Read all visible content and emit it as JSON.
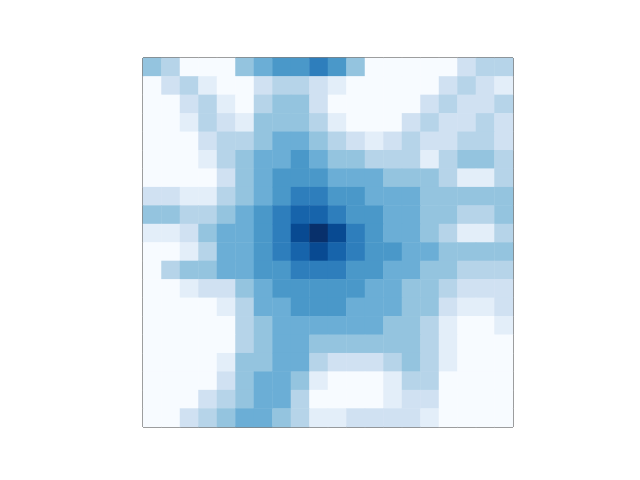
{
  "chart_data": {
    "type": "heatmap",
    "color": "Blues",
    "tick_labels": false,
    "zlim": [
      0,
      10
    ],
    "cells": [
      [
        4,
        3,
        0,
        0,
        0,
        4,
        5,
        6,
        6,
        7,
        6,
        4,
        0,
        0,
        0,
        0,
        0,
        2,
        3,
        3
      ],
      [
        0,
        2,
        3,
        1,
        0,
        0,
        2,
        3,
        3,
        2,
        1,
        0,
        0,
        0,
        0,
        0,
        2,
        3,
        2,
        1
      ],
      [
        0,
        0,
        2,
        3,
        1,
        0,
        3,
        4,
        4,
        2,
        0,
        0,
        0,
        0,
        0,
        2,
        3,
        2,
        2,
        3
      ],
      [
        0,
        0,
        1,
        3,
        2,
        1,
        4,
        4,
        4,
        3,
        1,
        0,
        0,
        0,
        2,
        3,
        2,
        2,
        3,
        2
      ],
      [
        0,
        0,
        0,
        2,
        3,
        3,
        4,
        5,
        5,
        4,
        3,
        2,
        1,
        2,
        3,
        2,
        2,
        3,
        3,
        2
      ],
      [
        0,
        0,
        0,
        1,
        3,
        4,
        5,
        5,
        6,
        5,
        4,
        4,
        3,
        3,
        3,
        1,
        3,
        4,
        4,
        3
      ],
      [
        0,
        0,
        0,
        0,
        2,
        4,
        5,
        6,
        6,
        6,
        5,
        5,
        5,
        4,
        4,
        4,
        3,
        1,
        1,
        3
      ],
      [
        2,
        2,
        1,
        1,
        3,
        4,
        5,
        6,
        7,
        7,
        6,
        6,
        5,
        5,
        5,
        4,
        4,
        4,
        4,
        4
      ],
      [
        4,
        4,
        3,
        3,
        4,
        5,
        6,
        7,
        8,
        8,
        7,
        6,
        6,
        5,
        5,
        4,
        4,
        3,
        3,
        4
      ],
      [
        1,
        1,
        2,
        4,
        5,
        5,
        6,
        7,
        9,
        10,
        9,
        7,
        6,
        5,
        5,
        4,
        3,
        1,
        1,
        3
      ],
      [
        0,
        0,
        1,
        3,
        5,
        5,
        6,
        7,
        8,
        9,
        8,
        7,
        6,
        6,
        5,
        5,
        4,
        4,
        4,
        4
      ],
      [
        0,
        3,
        4,
        4,
        5,
        5,
        6,
        6,
        7,
        7,
        7,
        6,
        6,
        5,
        5,
        4,
        4,
        3,
        3,
        3
      ],
      [
        0,
        0,
        1,
        2,
        2,
        4,
        5,
        6,
        6,
        6,
        6,
        6,
        5,
        5,
        4,
        4,
        3,
        2,
        2,
        2
      ],
      [
        0,
        0,
        0,
        0,
        1,
        3,
        5,
        5,
        6,
        6,
        6,
        5,
        5,
        5,
        4,
        4,
        2,
        1,
        1,
        2
      ],
      [
        0,
        0,
        0,
        0,
        0,
        3,
        4,
        5,
        5,
        5,
        5,
        5,
        5,
        4,
        4,
        3,
        1,
        0,
        0,
        1
      ],
      [
        0,
        0,
        0,
        0,
        0,
        3,
        4,
        5,
        5,
        4,
        4,
        4,
        4,
        4,
        4,
        3,
        1,
        0,
        0,
        0
      ],
      [
        0,
        0,
        0,
        0,
        1,
        4,
        4,
        5,
        5,
        3,
        2,
        2,
        2,
        3,
        4,
        3,
        1,
        0,
        0,
        0
      ],
      [
        0,
        0,
        0,
        0,
        2,
        4,
        5,
        5,
        4,
        1,
        0,
        0,
        0,
        1,
        3,
        3,
        0,
        0,
        0,
        0
      ],
      [
        0,
        0,
        0,
        2,
        3,
        4,
        5,
        5,
        3,
        0,
        0,
        0,
        0,
        1,
        2,
        2,
        0,
        0,
        0,
        0
      ],
      [
        0,
        0,
        2,
        3,
        4,
        5,
        5,
        4,
        3,
        1,
        1,
        2,
        2,
        2,
        2,
        1,
        0,
        0,
        0,
        0
      ]
    ]
  }
}
